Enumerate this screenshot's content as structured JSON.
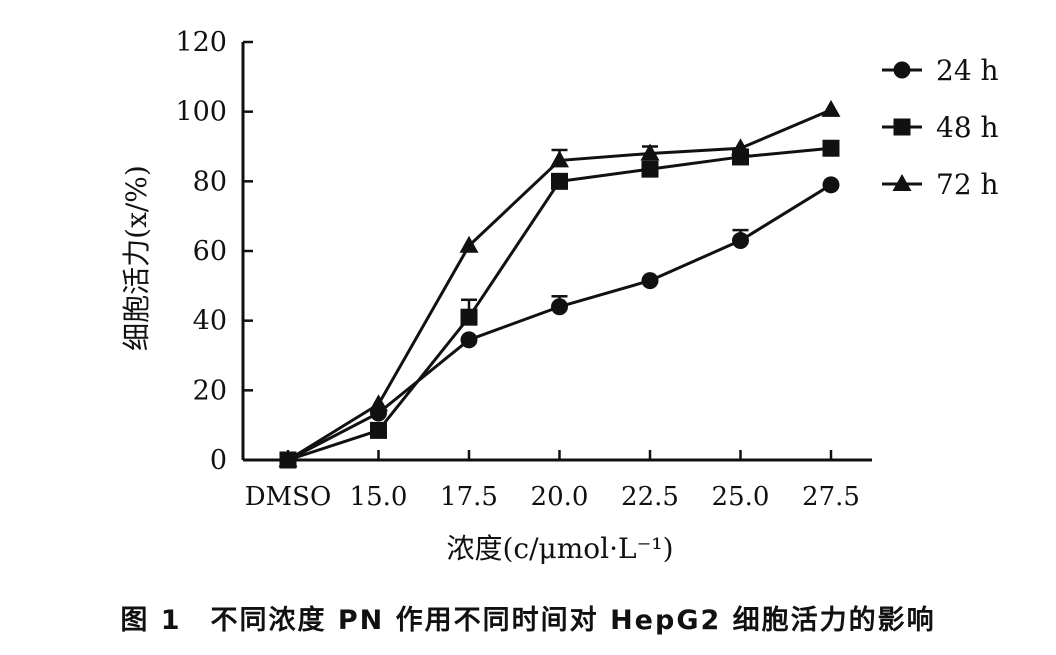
{
  "chart_data": {
    "type": "line",
    "categories": [
      "DMSO",
      "15.0",
      "17.5",
      "20.0",
      "22.5",
      "25.0",
      "27.5"
    ],
    "ylim": [
      0,
      120
    ],
    "yticks": [
      0,
      20,
      40,
      60,
      80,
      100,
      120
    ],
    "ylabel": "细胞活力(x/%)",
    "xlabel": "浓度(c/μmol·L⁻¹)",
    "legend_position": "top-right",
    "grid": false,
    "series": [
      {
        "name": "24 h",
        "marker": "circle",
        "values": [
          0,
          13.5,
          34.5,
          44,
          51.5,
          63,
          79
        ],
        "errors": [
          0,
          1,
          0,
          3,
          0,
          3,
          0
        ]
      },
      {
        "name": "48 h",
        "marker": "square",
        "values": [
          0,
          8.5,
          41,
          80,
          83.5,
          87,
          89.5
        ],
        "errors": [
          0,
          0,
          5,
          0,
          0,
          0,
          0
        ]
      },
      {
        "name": "72 h",
        "marker": "triangle",
        "values": [
          0,
          16,
          61.5,
          86,
          88,
          89.5,
          100.5
        ],
        "errors": [
          0,
          0,
          0,
          3,
          2,
          0,
          0
        ]
      }
    ]
  },
  "caption": "图 1　不同浓度 PN 作用不同时间对 HepG2 细胞活力的影响"
}
